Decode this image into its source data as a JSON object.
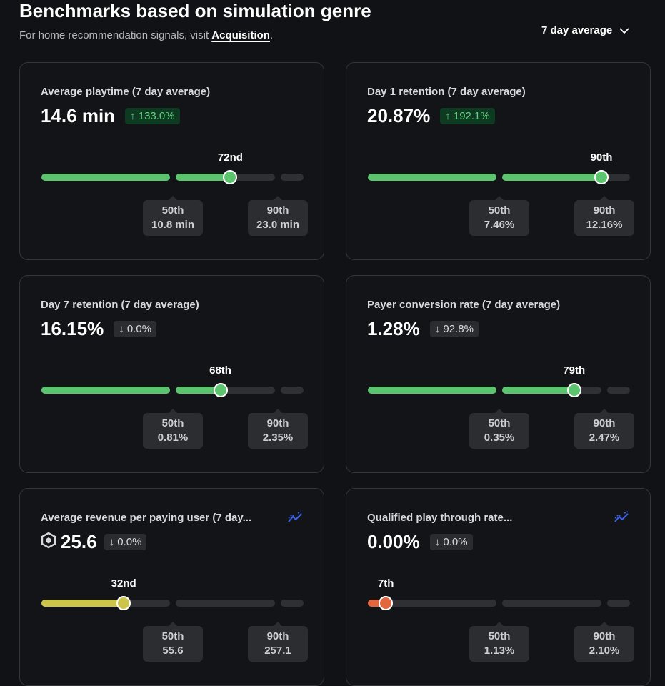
{
  "header": {
    "title": "Benchmarks based on simulation genre",
    "subtitle": "For home recommendation signals, visit ",
    "link": "Acquisition",
    "subtitle_end": ".",
    "dropdown": "7 day average"
  },
  "cards": [
    {
      "title": "Average playtime (7 day average)",
      "value": "14.6 min",
      "change": {
        "direction": "up",
        "label": "133.0%"
      },
      "percentile": {
        "value": 72,
        "label": "72nd"
      },
      "color": "#5cc46e",
      "benchmarks": [
        {
          "label": "50th",
          "value": "10.8 min"
        },
        {
          "label": "90th",
          "value": "23.0 min"
        }
      ]
    },
    {
      "title": "Day 1 retention (7 day average)",
      "value": "20.87%",
      "change": {
        "direction": "up",
        "label": "192.1%"
      },
      "percentile": {
        "value": 90,
        "label": "90th"
      },
      "color": "#5cc46e",
      "benchmarks": [
        {
          "label": "50th",
          "value": "7.46%"
        },
        {
          "label": "90th",
          "value": "12.16%"
        }
      ]
    },
    {
      "title": "Day 7 retention (7 day average)",
      "value": "16.15%",
      "change": {
        "direction": "down",
        "label": "0.0%"
      },
      "percentile": {
        "value": 68,
        "label": "68th"
      },
      "color": "#5cc46e",
      "benchmarks": [
        {
          "label": "50th",
          "value": "0.81%"
        },
        {
          "label": "90th",
          "value": "2.35%"
        }
      ]
    },
    {
      "title": "Payer conversion rate (7 day average)",
      "value": "1.28%",
      "change": {
        "direction": "down",
        "label": "92.8%"
      },
      "percentile": {
        "value": 79,
        "label": "79th"
      },
      "color": "#5cc46e",
      "benchmarks": [
        {
          "label": "50th",
          "value": "0.35%"
        },
        {
          "label": "90th",
          "value": "2.47%"
        }
      ]
    },
    {
      "title": "Average revenue per paying user (7 day...",
      "value": "25.6",
      "robux_icon": true,
      "trend_icon": true,
      "change": {
        "direction": "down",
        "label": "0.0%"
      },
      "percentile": {
        "value": 32,
        "label": "32nd"
      },
      "color": "#cdc54a",
      "benchmarks": [
        {
          "label": "50th",
          "value": "55.6"
        },
        {
          "label": "90th",
          "value": "257.1"
        }
      ]
    },
    {
      "title": "Qualified play through rate...",
      "value": "0.00%",
      "trend_icon": true,
      "change": {
        "direction": "down",
        "label": "0.0%"
      },
      "percentile": {
        "value": 7,
        "label": "7th"
      },
      "color": "#e2663e",
      "benchmarks": [
        {
          "label": "50th",
          "value": "1.13%"
        },
        {
          "label": "90th",
          "value": "2.10%"
        }
      ]
    }
  ]
}
